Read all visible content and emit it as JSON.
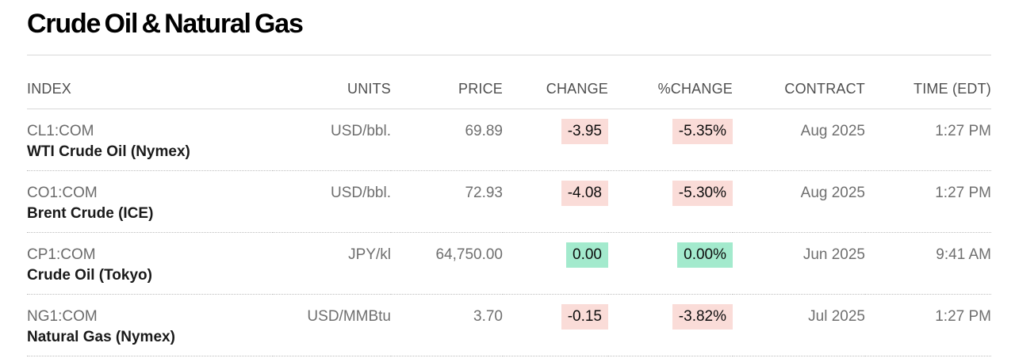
{
  "page": {
    "title": "Crude Oil & Natural Gas"
  },
  "colors": {
    "negative_highlight_bg": "#fadcd8",
    "positive_highlight_bg": "#a3eacd"
  },
  "table": {
    "columns": [
      "INDEX",
      "UNITS",
      "PRICE",
      "CHANGE",
      "%CHANGE",
      "CONTRACT",
      "TIME (EDT)"
    ],
    "rows": [
      {
        "ticker": "CL1:COM",
        "name": "WTI Crude Oil (Nymex)",
        "units": "USD/bbl.",
        "price": "69.89",
        "change": "-3.95",
        "pct_change": "-5.35%",
        "direction": "down",
        "contract": "Aug 2025",
        "time": "1:27 PM"
      },
      {
        "ticker": "CO1:COM",
        "name": "Brent Crude (ICE)",
        "units": "USD/bbl.",
        "price": "72.93",
        "change": "-4.08",
        "pct_change": "-5.30%",
        "direction": "down",
        "contract": "Aug 2025",
        "time": "1:27 PM"
      },
      {
        "ticker": "CP1:COM",
        "name": "Crude Oil (Tokyo)",
        "units": "JPY/kl",
        "price": "64,750.00",
        "change": "0.00",
        "pct_change": "0.00%",
        "direction": "flat",
        "contract": "Jun 2025",
        "time": "9:41 AM"
      },
      {
        "ticker": "NG1:COM",
        "name": "Natural Gas (Nymex)",
        "units": "USD/MMBtu",
        "price": "3.70",
        "change": "-0.15",
        "pct_change": "-3.82%",
        "direction": "down",
        "contract": "Jul 2025",
        "time": "1:27 PM"
      }
    ]
  }
}
